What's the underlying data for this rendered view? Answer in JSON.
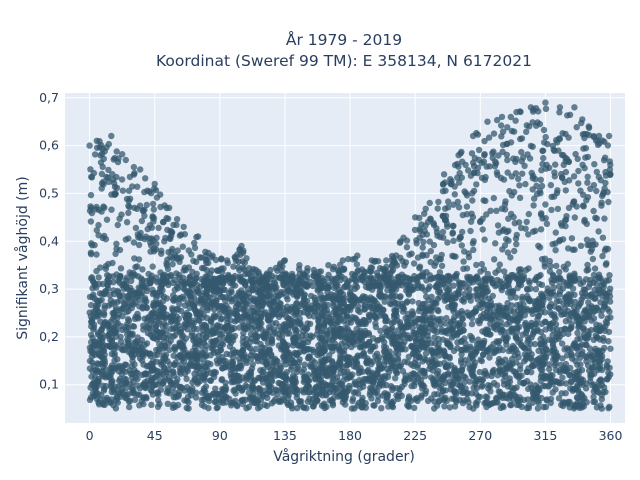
{
  "chart_data": {
    "type": "scatter",
    "title_line1": "År 1979 - 2019",
    "title_line2": "Koordinat (Sweref 99 TM): E 358134, N 6172021",
    "xlabel": "Vågriktning (grader)",
    "ylabel": "Signifikant våghöjd (m)",
    "xlim": [
      -17,
      370
    ],
    "ylim": [
      0.02,
      0.71
    ],
    "x_ticks": [
      0,
      45,
      90,
      135,
      180,
      225,
      270,
      315,
      360
    ],
    "x_tick_labels": [
      "0",
      "45",
      "90",
      "135",
      "180",
      "225",
      "270",
      "315",
      "360"
    ],
    "y_ticks": [
      0.1,
      0.2,
      0.3,
      0.4,
      0.5,
      0.6,
      0.7
    ],
    "y_tick_labels": [
      "0,1",
      "0,2",
      "0,3",
      "0,4",
      "0,5",
      "0,6",
      "0,7"
    ],
    "grid": true,
    "marker_color": "#34586e",
    "plot_bgcolor": "#e5ecf6",
    "series": [
      {
        "y_min": 0.05,
        "upper_envelope": [
          [
            0,
            0.6
          ],
          [
            5,
            0.61
          ],
          [
            15,
            0.62
          ],
          [
            25,
            0.57
          ],
          [
            35,
            0.55
          ],
          [
            45,
            0.52
          ],
          [
            55,
            0.47
          ],
          [
            65,
            0.43
          ],
          [
            75,
            0.41
          ],
          [
            85,
            0.37
          ],
          [
            95,
            0.36
          ],
          [
            105,
            0.39
          ],
          [
            115,
            0.34
          ],
          [
            125,
            0.34
          ],
          [
            135,
            0.36
          ],
          [
            145,
            0.35
          ],
          [
            155,
            0.34
          ],
          [
            165,
            0.35
          ],
          [
            175,
            0.36
          ],
          [
            185,
            0.37
          ],
          [
            195,
            0.36
          ],
          [
            205,
            0.36
          ],
          [
            215,
            0.4
          ],
          [
            225,
            0.45
          ],
          [
            235,
            0.48
          ],
          [
            245,
            0.54
          ],
          [
            255,
            0.58
          ],
          [
            265,
            0.62
          ],
          [
            275,
            0.65
          ],
          [
            285,
            0.66
          ],
          [
            295,
            0.67
          ],
          [
            305,
            0.68
          ],
          [
            315,
            0.69
          ],
          [
            325,
            0.68
          ],
          [
            335,
            0.68
          ],
          [
            345,
            0.64
          ],
          [
            352,
            0.62
          ],
          [
            359,
            0.62
          ]
        ]
      }
    ]
  }
}
